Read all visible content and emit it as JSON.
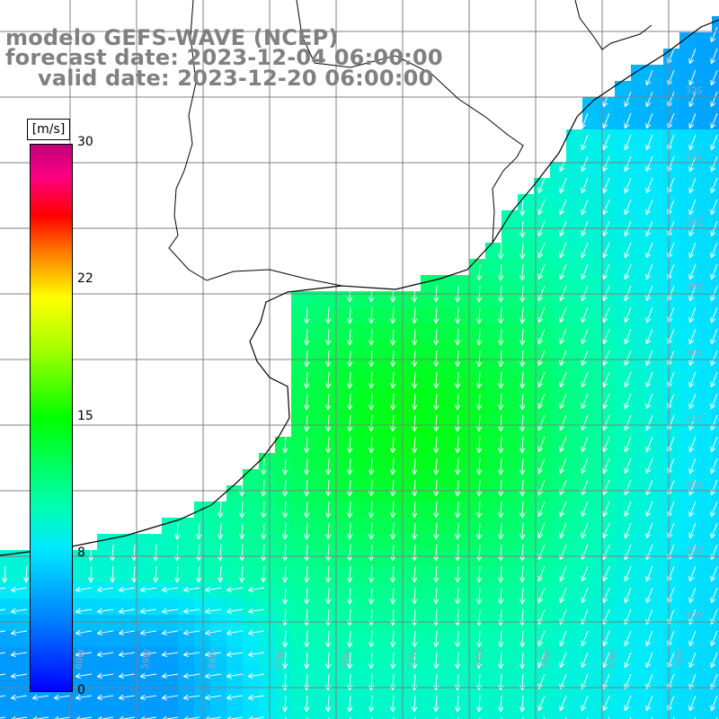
{
  "title": {
    "line1": "modelo GEFS-WAVE (NCEP)",
    "line2": "forecast date: 2023-12-04 06:00:00",
    "line3": "valid date: 2023-12-20 06:00:00"
  },
  "colorbar": {
    "unit": "[m/s]",
    "ticks": [
      "30",
      "22",
      "15",
      "8",
      "0"
    ],
    "colors": [
      "#0000ff",
      "#0080ff",
      "#00e8ff",
      "#00ff00",
      "#ffff00",
      "#ff8000",
      "#ff0000",
      "#c0007a"
    ]
  },
  "lat_labels": [
    "32S",
    "33S",
    "34S",
    "35S",
    "36S",
    "37S",
    "38S",
    "39S",
    "40S"
  ],
  "lon_labels": [
    "60W",
    "59W",
    "58W",
    "57W",
    "56W",
    "55W",
    "54W",
    "53W",
    "52W",
    "51W"
  ],
  "colors": {
    "land": "#ffffff",
    "coast": "#000000",
    "grid": "#808080",
    "arrow": "#ffffff"
  }
}
